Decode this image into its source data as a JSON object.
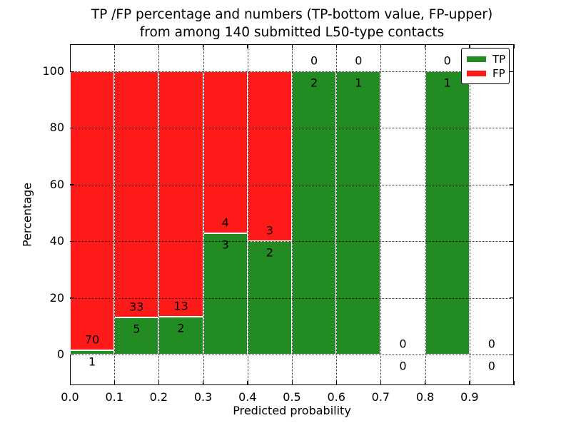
{
  "title": {
    "line1": "TP /FP percentage and numbers (TP-bottom value, FP-upper)",
    "line2": "from among 140 submitted L50-type contacts"
  },
  "axes": {
    "xlabel": "Predicted probability",
    "ylabel": "Percentage",
    "x_tick_labels": [
      "0.0",
      "0.1",
      "0.2",
      "0.3",
      "0.4",
      "0.5",
      "0.6",
      "0.7",
      "0.8",
      "0.9"
    ],
    "y_tick_labels": [
      "0",
      "20",
      "40",
      "60",
      "80",
      "100"
    ]
  },
  "legend": {
    "items": [
      {
        "label": "TP",
        "color": "#228B22"
      },
      {
        "label": "FP",
        "color": "#FF1A1A"
      }
    ]
  },
  "colors": {
    "tp": "#228B22",
    "fp": "#FF1A1A",
    "bar_edge": "#ffffff",
    "grid": "#000000"
  },
  "chart_data": {
    "type": "bar",
    "stacked": true,
    "title": "TP /FP percentage and numbers (TP-bottom value, FP-upper) from among 140 submitted L50-type contacts",
    "xlabel": "Predicted probability",
    "ylabel": "Percentage",
    "xlim": [
      0.0,
      1.0
    ],
    "ylim": [
      -11,
      110
    ],
    "grid": true,
    "legend_position": "upper right",
    "total_contacts": 140,
    "x_ticks": [
      0.0,
      0.1,
      0.2,
      0.3,
      0.4,
      0.5,
      0.6,
      0.7,
      0.8,
      0.9
    ],
    "y_ticks": [
      0,
      20,
      40,
      60,
      80,
      100
    ],
    "series": [
      {
        "name": "TP",
        "color": "#228B22",
        "role": "bottom"
      },
      {
        "name": "FP",
        "color": "#FF1A1A",
        "role": "top"
      }
    ],
    "bins": [
      {
        "range": [
          0.0,
          0.1
        ],
        "tp": 1,
        "fp": 70,
        "tp_pct": 1.41,
        "fp_pct": 98.59
      },
      {
        "range": [
          0.1,
          0.2
        ],
        "tp": 5,
        "fp": 33,
        "tp_pct": 13.16,
        "fp_pct": 86.84
      },
      {
        "range": [
          0.2,
          0.3
        ],
        "tp": 2,
        "fp": 13,
        "tp_pct": 13.33,
        "fp_pct": 86.67
      },
      {
        "range": [
          0.3,
          0.4
        ],
        "tp": 3,
        "fp": 4,
        "tp_pct": 42.86,
        "fp_pct": 57.14
      },
      {
        "range": [
          0.4,
          0.5
        ],
        "tp": 2,
        "fp": 3,
        "tp_pct": 40.0,
        "fp_pct": 60.0
      },
      {
        "range": [
          0.5,
          0.6
        ],
        "tp": 2,
        "fp": 0,
        "tp_pct": 100.0,
        "fp_pct": 0.0
      },
      {
        "range": [
          0.6,
          0.7
        ],
        "tp": 1,
        "fp": 0,
        "tp_pct": 100.0,
        "fp_pct": 0.0
      },
      {
        "range": [
          0.7,
          0.8
        ],
        "tp": 0,
        "fp": 0,
        "tp_pct": 0.0,
        "fp_pct": 0.0
      },
      {
        "range": [
          0.8,
          0.9
        ],
        "tp": 1,
        "fp": 0,
        "tp_pct": 100.0,
        "fp_pct": 0.0
      },
      {
        "range": [
          0.9,
          1.0
        ],
        "tp": 0,
        "fp": 0,
        "tp_pct": 0.0,
        "fp_pct": 0.0
      }
    ]
  }
}
